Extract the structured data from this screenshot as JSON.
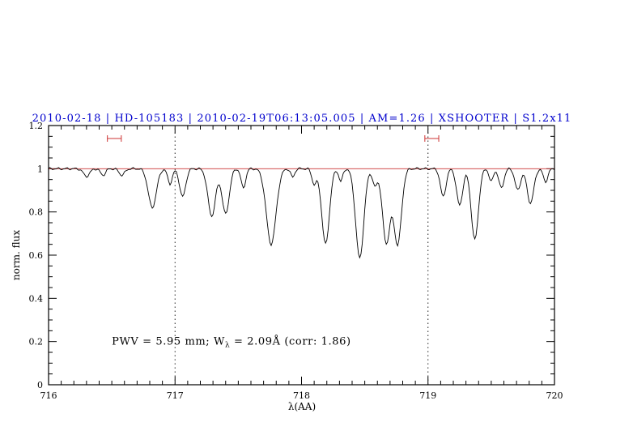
{
  "chart_data": {
    "type": "line",
    "title": "2010-02-18 | HD-105183 | 2010-02-19T06:13:05.005 | AM=1.26 | XSHOOTER | S1.2x11",
    "title_color": "#0000cd",
    "xlabel": "λ(AA)",
    "ylabel": "norm. flux",
    "xlim": [
      716,
      720
    ],
    "ylim": [
      0,
      1.2
    ],
    "xticks": [
      716,
      717,
      718,
      719,
      720
    ],
    "xtick_labels": [
      "716",
      "717",
      "718",
      "719",
      "720"
    ],
    "yticks": [
      0,
      0.2,
      0.4,
      0.6,
      0.8,
      1,
      1.2
    ],
    "ytick_labels": [
      "0",
      "0.2",
      "0.4",
      "0.6",
      "0.8",
      "1",
      "1.2"
    ],
    "x_minor_step": 0.1,
    "y_minor_step": 0.05,
    "grid": false,
    "continuum": {
      "y": 1.0,
      "color": "#cc3333"
    },
    "dotted_vlines": [
      717,
      719
    ],
    "region_markers": {
      "y": 1.14,
      "halfwidth": 0.055,
      "centers": [
        716.52,
        719.03
      ],
      "color": "#cc3333"
    },
    "spectrum": {
      "color": "#000000",
      "sample_step": 0.01,
      "noise_amplitude": 0.004,
      "continuum_level": 1.0,
      "absorption_lines": [
        {
          "center": 716.3,
          "depth": 0.035,
          "sigma": 0.025
        },
        {
          "center": 716.43,
          "depth": 0.03,
          "sigma": 0.02
        },
        {
          "center": 716.58,
          "depth": 0.03,
          "sigma": 0.022
        },
        {
          "center": 716.82,
          "depth": 0.18,
          "sigma": 0.032
        },
        {
          "center": 716.96,
          "depth": 0.07,
          "sigma": 0.018
        },
        {
          "center": 717.06,
          "depth": 0.13,
          "sigma": 0.024
        },
        {
          "center": 717.29,
          "depth": 0.22,
          "sigma": 0.03
        },
        {
          "center": 717.4,
          "depth": 0.21,
          "sigma": 0.028
        },
        {
          "center": 717.54,
          "depth": 0.09,
          "sigma": 0.018
        },
        {
          "center": 717.76,
          "depth": 0.35,
          "sigma": 0.038
        },
        {
          "center": 717.93,
          "depth": 0.04,
          "sigma": 0.015
        },
        {
          "center": 718.1,
          "depth": 0.07,
          "sigma": 0.018
        },
        {
          "center": 718.19,
          "depth": 0.35,
          "sigma": 0.03
        },
        {
          "center": 718.31,
          "depth": 0.06,
          "sigma": 0.015
        },
        {
          "center": 718.46,
          "depth": 0.415,
          "sigma": 0.032
        },
        {
          "center": 718.58,
          "depth": 0.08,
          "sigma": 0.018
        },
        {
          "center": 718.67,
          "depth": 0.345,
          "sigma": 0.03
        },
        {
          "center": 718.76,
          "depth": 0.35,
          "sigma": 0.03
        },
        {
          "center": 719.12,
          "depth": 0.13,
          "sigma": 0.022
        },
        {
          "center": 719.25,
          "depth": 0.17,
          "sigma": 0.024
        },
        {
          "center": 719.37,
          "depth": 0.33,
          "sigma": 0.028
        },
        {
          "center": 719.5,
          "depth": 0.06,
          "sigma": 0.016
        },
        {
          "center": 719.58,
          "depth": 0.09,
          "sigma": 0.02
        },
        {
          "center": 719.71,
          "depth": 0.1,
          "sigma": 0.022
        },
        {
          "center": 719.81,
          "depth": 0.16,
          "sigma": 0.026
        },
        {
          "center": 719.93,
          "depth": 0.06,
          "sigma": 0.018
        }
      ]
    },
    "annotation": {
      "parts": [
        "PWV = 5.95 mm; W",
        "λ",
        " = 2.09Å (corr: 1.86)"
      ],
      "x": 716.5,
      "y": 0.185,
      "color": "#0000cd"
    }
  }
}
